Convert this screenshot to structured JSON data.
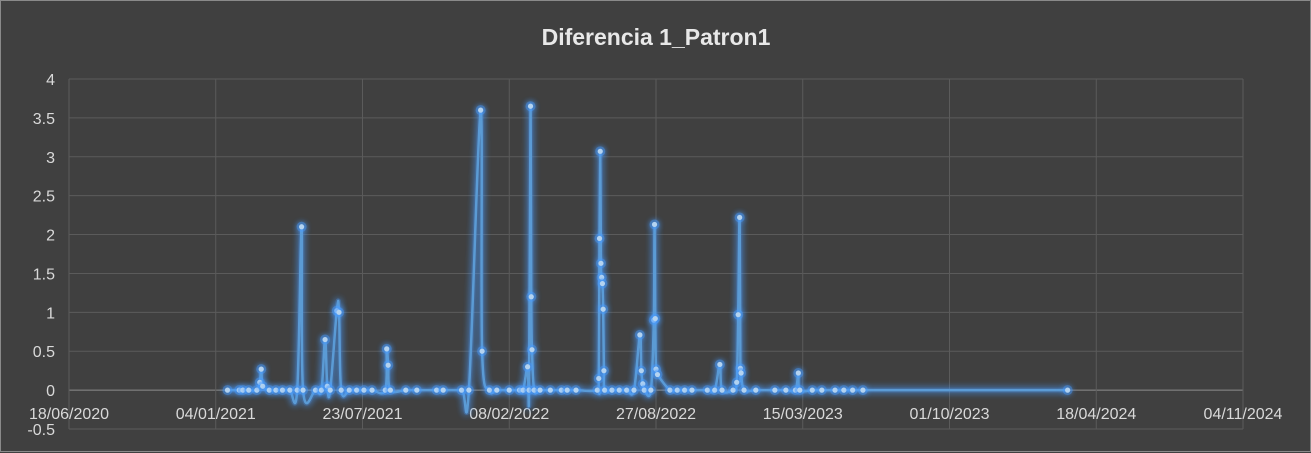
{
  "chart_data": {
    "type": "scatter",
    "title": "Diferencia 1_Patron1",
    "xlabel": "",
    "ylabel": "",
    "x_axis": {
      "type": "date",
      "min": "2020-06-18",
      "max": "2024-11-04",
      "ticks": [
        "2020-06-18",
        "2021-01-04",
        "2021-07-23",
        "2022-02-08",
        "2022-08-27",
        "2023-03-15",
        "2023-10-01",
        "2024-04-18",
        "2024-11-04"
      ],
      "tick_labels": [
        "18/06/2020",
        "04/01/2021",
        "23/07/2021",
        "08/02/2022",
        "27/08/2022",
        "15/03/2023",
        "01/10/2023",
        "18/04/2024",
        "04/11/2024"
      ]
    },
    "y_axis": {
      "min": -0.5,
      "max": 4,
      "ticks": [
        -0.5,
        0,
        0.5,
        1,
        1.5,
        2,
        2.5,
        3,
        3.5,
        4
      ],
      "tick_labels": [
        "-0.5",
        "0",
        "0.5",
        "1",
        "1.5",
        "2",
        "2.5",
        "3",
        "3.5",
        "4"
      ]
    },
    "grid": {
      "horizontal": true,
      "vertical": true
    },
    "line_color": "#5b9bd5",
    "marker_color": "#b4d3f0",
    "glow_color": "#4a9cff",
    "smoothed_line": true,
    "legend": "none",
    "series": [
      {
        "points": [
          [
            "2021-01-20",
            0
          ],
          [
            "2021-02-05",
            0
          ],
          [
            "2021-02-10",
            0
          ],
          [
            "2021-02-18",
            0
          ],
          [
            "2021-03-01",
            0
          ],
          [
            "2021-03-05",
            0.1
          ],
          [
            "2021-03-07",
            0.27
          ],
          [
            "2021-03-09",
            0.05
          ],
          [
            "2021-03-18",
            0
          ],
          [
            "2021-03-27",
            0
          ],
          [
            "2021-04-05",
            0
          ],
          [
            "2021-04-15",
            0
          ],
          [
            "2021-04-25",
            0
          ],
          [
            "2021-05-01",
            2.1
          ],
          [
            "2021-05-03",
            0
          ],
          [
            "2021-05-20",
            0
          ],
          [
            "2021-05-28",
            0
          ],
          [
            "2021-06-02",
            0.65
          ],
          [
            "2021-06-05",
            0.05
          ],
          [
            "2021-06-09",
            0
          ],
          [
            "2021-06-18",
            1.02
          ],
          [
            "2021-06-21",
            1.0
          ],
          [
            "2021-06-24",
            0
          ],
          [
            "2021-07-05",
            0
          ],
          [
            "2021-07-15",
            0
          ],
          [
            "2021-07-25",
            0
          ],
          [
            "2021-08-05",
            0
          ],
          [
            "2021-08-23",
            0
          ],
          [
            "2021-08-25",
            0.53
          ],
          [
            "2021-08-27",
            0.32
          ],
          [
            "2021-08-30",
            0
          ],
          [
            "2021-09-20",
            0
          ],
          [
            "2021-10-05",
            0
          ],
          [
            "2021-11-01",
            0
          ],
          [
            "2021-11-10",
            0
          ],
          [
            "2021-12-05",
            0
          ],
          [
            "2021-12-15",
            0
          ],
          [
            "2021-12-31",
            3.6
          ],
          [
            "2022-01-02",
            0.5
          ],
          [
            "2022-01-12",
            0
          ],
          [
            "2022-01-22",
            0
          ],
          [
            "2022-02-08",
            0
          ],
          [
            "2022-02-22",
            0
          ],
          [
            "2022-02-27",
            0
          ],
          [
            "2022-03-05",
            0.3
          ],
          [
            "2022-03-07",
            0
          ],
          [
            "2022-03-09",
            3.65
          ],
          [
            "2022-03-10",
            1.2
          ],
          [
            "2022-03-11",
            0.52
          ],
          [
            "2022-03-14",
            0
          ],
          [
            "2022-03-22",
            0
          ],
          [
            "2022-04-05",
            0
          ],
          [
            "2022-04-20",
            0
          ],
          [
            "2022-04-28",
            0
          ],
          [
            "2022-05-10",
            0
          ],
          [
            "2022-06-08",
            0
          ],
          [
            "2022-06-10",
            0.15
          ],
          [
            "2022-06-11",
            1.95
          ],
          [
            "2022-06-12",
            3.07
          ],
          [
            "2022-06-13",
            1.63
          ],
          [
            "2022-06-14",
            1.45
          ],
          [
            "2022-06-15",
            1.37
          ],
          [
            "2022-06-16",
            1.04
          ],
          [
            "2022-06-17",
            0.25
          ],
          [
            "2022-06-18",
            0
          ],
          [
            "2022-06-28",
            0
          ],
          [
            "2022-07-08",
            0
          ],
          [
            "2022-07-18",
            0
          ],
          [
            "2022-07-28",
            0
          ],
          [
            "2022-08-05",
            0.71
          ],
          [
            "2022-08-07",
            0.25
          ],
          [
            "2022-08-09",
            0.08
          ],
          [
            "2022-08-11",
            0
          ],
          [
            "2022-08-20",
            0
          ],
          [
            "2022-08-24",
            0.9
          ],
          [
            "2022-08-25",
            2.13
          ],
          [
            "2022-08-26",
            0.92
          ],
          [
            "2022-08-27",
            0.27
          ],
          [
            "2022-08-29",
            0.2
          ],
          [
            "2022-09-15",
            0
          ],
          [
            "2022-09-25",
            0
          ],
          [
            "2022-10-05",
            0
          ],
          [
            "2022-10-15",
            0
          ],
          [
            "2022-11-05",
            0
          ],
          [
            "2022-11-15",
            0
          ],
          [
            "2022-11-22",
            0.33
          ],
          [
            "2022-11-25",
            0
          ],
          [
            "2022-12-10",
            0
          ],
          [
            "2022-12-15",
            0.1
          ],
          [
            "2022-12-17",
            0.97
          ],
          [
            "2022-12-19",
            2.22
          ],
          [
            "2022-12-20",
            0.28
          ],
          [
            "2022-12-21",
            0.22
          ],
          [
            "2022-12-25",
            0
          ],
          [
            "2023-01-10",
            0
          ],
          [
            "2023-02-05",
            0
          ],
          [
            "2023-02-20",
            0
          ],
          [
            "2023-03-05",
            0
          ],
          [
            "2023-03-09",
            0.22
          ],
          [
            "2023-03-11",
            0
          ],
          [
            "2023-03-28",
            0
          ],
          [
            "2023-04-10",
            0
          ],
          [
            "2023-04-28",
            0
          ],
          [
            "2023-05-10",
            0
          ],
          [
            "2023-05-22",
            0
          ],
          [
            "2023-06-05",
            0
          ],
          [
            "2024-03-10",
            0
          ]
        ]
      }
    ]
  }
}
